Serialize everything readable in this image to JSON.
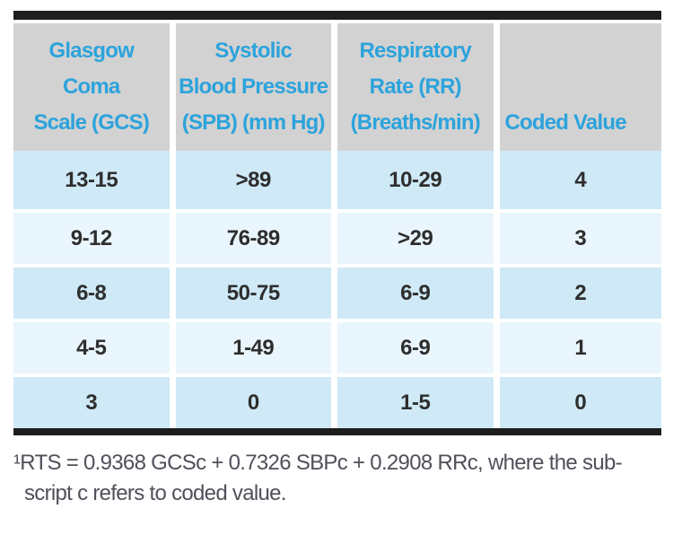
{
  "colors": {
    "accent_blue": "#2ca3dc",
    "header_bg": "#d2d2d2",
    "row_blue": "#cfe9f7",
    "row_light_blue": "#eaf6fd",
    "bar_black": "#1e1e1e",
    "cell_text": "#2e2e2e",
    "footnote_text": "#50505a",
    "page_bg": "#ffffff"
  },
  "table": {
    "columns": [
      {
        "id": "gcs",
        "lines": [
          "Glasgow",
          "Coma",
          "Scale (GCS)"
        ]
      },
      {
        "id": "sbp",
        "lines": [
          "Systolic",
          "Blood Pressure",
          "(SPB) (mm Hg)"
        ]
      },
      {
        "id": "rr",
        "lines": [
          "Respiratory",
          "Rate (RR)",
          "(Breaths/min)"
        ]
      },
      {
        "id": "coded_value",
        "lines": [
          "Coded Value"
        ]
      }
    ],
    "rows": [
      [
        "13-15",
        ">89",
        "10-29",
        "4"
      ],
      [
        "9-12",
        "76-89",
        ">29",
        "3"
      ],
      [
        "6-8",
        "50-75",
        "6-9",
        "2"
      ],
      [
        "4-5",
        "1-49",
        "6-9",
        "1"
      ],
      [
        "3",
        "0",
        "1-5",
        "0"
      ]
    ]
  },
  "footnote": {
    "line1": "¹RTS = 0.9368 GCSc + 0.7326 SBPc + 0.2908 RRc, where the sub-",
    "line2": "script c refers to coded value."
  },
  "chart_data": {
    "type": "table",
    "columns": [
      "Glasgow Coma Scale (GCS)",
      "Systolic Blood Pressure (SPB) (mm Hg)",
      "Respiratory Rate (RR) (Breaths/min)",
      "Coded Value"
    ],
    "rows": [
      [
        "13-15",
        ">89",
        "10-29",
        "4"
      ],
      [
        "9-12",
        "76-89",
        ">29",
        "3"
      ],
      [
        "6-8",
        "50-75",
        "6-9",
        "2"
      ],
      [
        "4-5",
        "1-49",
        "6-9",
        "1"
      ],
      [
        "3",
        "0",
        "1-5",
        "0"
      ]
    ]
  }
}
